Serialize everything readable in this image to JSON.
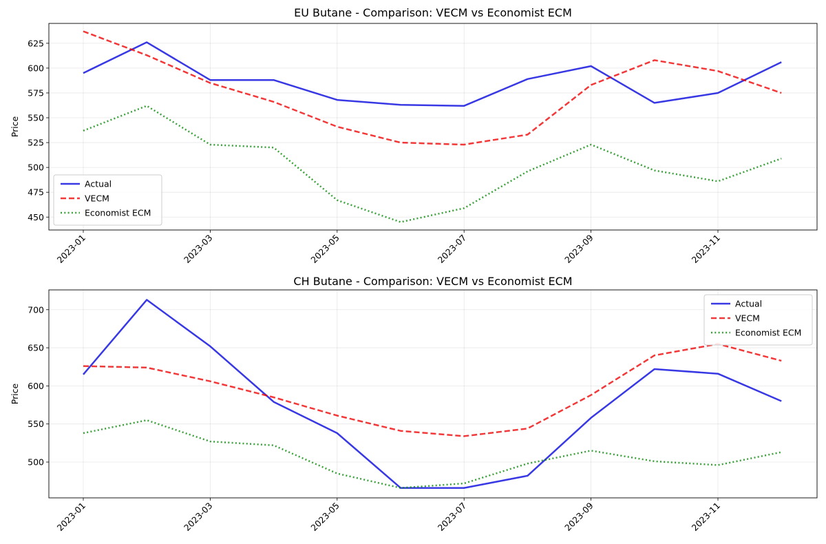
{
  "chart_data": [
    {
      "type": "line",
      "title": "EU Butane - Comparison: VECM vs Economist ECM",
      "xlabel": "",
      "ylabel": "Price",
      "x": [
        "2023-01",
        "2023-02",
        "2023-03",
        "2023-04",
        "2023-05",
        "2023-06",
        "2023-07",
        "2023-08",
        "2023-09",
        "2023-10",
        "2023-11",
        "2023-12"
      ],
      "xticks": [
        "2023-01",
        "2023-03",
        "2023-05",
        "2023-07",
        "2023-09",
        "2023-11"
      ],
      "yticks": [
        450,
        475,
        500,
        525,
        550,
        575,
        600,
        625
      ],
      "ylim": [
        437,
        645
      ],
      "grid": true,
      "legend_position": "lower-left",
      "series": [
        {
          "name": "Actual",
          "color": "#0000dd",
          "style": "solid",
          "values": [
            595,
            626,
            588,
            588,
            568,
            563,
            562,
            589,
            602,
            565,
            575,
            606
          ]
        },
        {
          "name": "VECM",
          "color": "#ee0000",
          "style": "dashed",
          "values": [
            637,
            613,
            585,
            566,
            541,
            525,
            523,
            533,
            583,
            608,
            597,
            575
          ]
        },
        {
          "name": "Economist ECM",
          "color": "#008800",
          "style": "dotted",
          "values": [
            537,
            562,
            523,
            520,
            467,
            445,
            459,
            496,
            523,
            497,
            486,
            509
          ]
        }
      ]
    },
    {
      "type": "line",
      "title": "CH Butane - Comparison: VECM vs Economist ECM",
      "xlabel": "",
      "ylabel": "Price",
      "x": [
        "2023-01",
        "2023-02",
        "2023-03",
        "2023-04",
        "2023-05",
        "2023-06",
        "2023-07",
        "2023-08",
        "2023-09",
        "2023-10",
        "2023-11",
        "2023-12"
      ],
      "xticks": [
        "2023-01",
        "2023-03",
        "2023-05",
        "2023-07",
        "2023-09",
        "2023-11"
      ],
      "yticks": [
        500,
        550,
        600,
        650,
        700
      ],
      "ylim": [
        453,
        726
      ],
      "grid": true,
      "legend_position": "upper-right",
      "series": [
        {
          "name": "Actual",
          "color": "#0000dd",
          "style": "solid",
          "values": [
            615,
            713,
            652,
            579,
            538,
            466,
            466,
            482,
            558,
            622,
            616,
            580
          ]
        },
        {
          "name": "VECM",
          "color": "#ee0000",
          "style": "dashed",
          "values": [
            626,
            624,
            606,
            585,
            561,
            541,
            534,
            544,
            588,
            640,
            655,
            633
          ]
        },
        {
          "name": "Economist ECM",
          "color": "#008800",
          "style": "dotted",
          "values": [
            538,
            555,
            527,
            522,
            485,
            466,
            472,
            498,
            515,
            501,
            496,
            513
          ]
        }
      ]
    }
  ]
}
